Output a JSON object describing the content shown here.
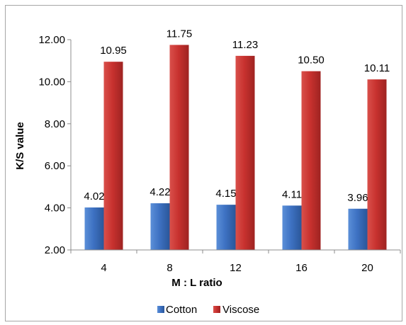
{
  "chart_data": {
    "type": "bar",
    "title": "",
    "xlabel": "M : L ratio",
    "ylabel": "K/S value",
    "categories": [
      "4",
      "8",
      "12",
      "16",
      "20"
    ],
    "series": [
      {
        "name": "Cotton",
        "values": [
          4.02,
          4.22,
          4.15,
          4.11,
          3.96
        ],
        "labels": [
          "4.02",
          "4.22",
          "4.15",
          "4.11",
          "3.96"
        ],
        "color": "#3f74c4"
      },
      {
        "name": "Viscose",
        "values": [
          10.95,
          11.75,
          11.23,
          10.5,
          10.11
        ],
        "labels": [
          "10.95",
          "11.75",
          "11.23",
          "10.50",
          "10.11"
        ],
        "color": "#c8322f"
      }
    ],
    "ylim": [
      2.0,
      12.0
    ],
    "yticks": [
      {
        "value": 2.0,
        "label": "2.00"
      },
      {
        "value": 4.0,
        "label": "4.00"
      },
      {
        "value": 6.0,
        "label": "6.00"
      },
      {
        "value": 8.0,
        "label": "8.00"
      },
      {
        "value": 10.0,
        "label": "10.00"
      },
      {
        "value": 12.0,
        "label": "12.00"
      }
    ],
    "grid": false,
    "legend_position": "bottom"
  }
}
